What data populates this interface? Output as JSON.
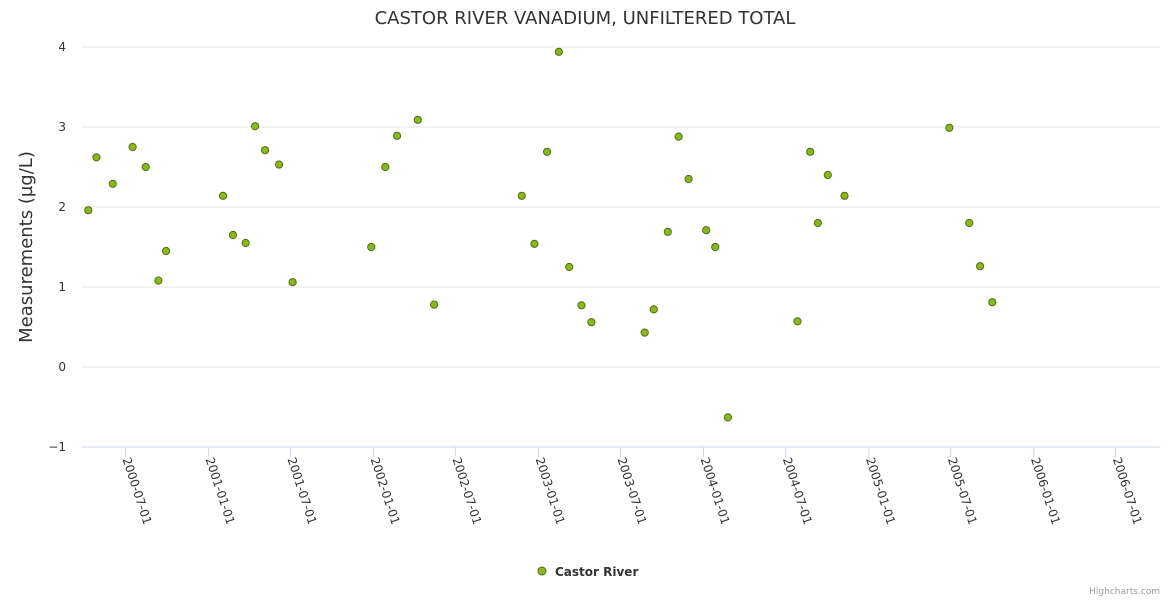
{
  "chart_data": {
    "type": "scatter",
    "title": "CASTOR RIVER VANADIUM, UNFILTERED TOTAL",
    "ylabel": "Measurements (µg/L)",
    "xlabel": "",
    "ylim": [
      -1,
      4
    ],
    "yticks": [
      "−1",
      "0",
      "1",
      "2",
      "3",
      "4"
    ],
    "ytick_values": [
      -1,
      0,
      1,
      2,
      3,
      4
    ],
    "xlim": [
      "2000-03-27",
      "2006-10-07"
    ],
    "xticks": [
      "2000-07-01",
      "2001-01-01",
      "2001-07-01",
      "2002-01-01",
      "2002-07-01",
      "2003-01-01",
      "2003-07-01",
      "2004-01-01",
      "2004-07-01",
      "2005-01-01",
      "2005-07-01",
      "2006-01-01",
      "2006-07-01"
    ],
    "series": [
      {
        "name": "Castor River",
        "color": "#8ab81e",
        "points": [
          {
            "x": "2000-04-10",
            "y": 1.96
          },
          {
            "x": "2000-04-28",
            "y": 2.62
          },
          {
            "x": "2000-06-03",
            "y": 2.29
          },
          {
            "x": "2000-07-17",
            "y": 2.75
          },
          {
            "x": "2000-08-15",
            "y": 2.5
          },
          {
            "x": "2000-09-12",
            "y": 1.08
          },
          {
            "x": "2000-09-29",
            "y": 1.45
          },
          {
            "x": "2001-02-02",
            "y": 2.14
          },
          {
            "x": "2001-02-24",
            "y": 1.65
          },
          {
            "x": "2001-03-24",
            "y": 1.55
          },
          {
            "x": "2001-04-14",
            "y": 3.01
          },
          {
            "x": "2001-05-06",
            "y": 2.71
          },
          {
            "x": "2001-06-06",
            "y": 2.53
          },
          {
            "x": "2001-07-06",
            "y": 1.06
          },
          {
            "x": "2001-12-27",
            "y": 1.5
          },
          {
            "x": "2002-01-27",
            "y": 2.5
          },
          {
            "x": "2002-02-22",
            "y": 2.89
          },
          {
            "x": "2002-04-09",
            "y": 3.09
          },
          {
            "x": "2002-05-15",
            "y": 0.78
          },
          {
            "x": "2002-11-25",
            "y": 2.14
          },
          {
            "x": "2002-12-23",
            "y": 1.54
          },
          {
            "x": "2003-01-20",
            "y": 2.69
          },
          {
            "x": "2003-02-15",
            "y": 3.94
          },
          {
            "x": "2003-03-10",
            "y": 1.25
          },
          {
            "x": "2003-04-06",
            "y": 0.77
          },
          {
            "x": "2003-04-28",
            "y": 0.56
          },
          {
            "x": "2003-08-24",
            "y": 0.43
          },
          {
            "x": "2003-09-13",
            "y": 0.72
          },
          {
            "x": "2003-10-14",
            "y": 1.69
          },
          {
            "x": "2003-11-07",
            "y": 2.88
          },
          {
            "x": "2003-11-29",
            "y": 2.35
          },
          {
            "x": "2004-01-07",
            "y": 1.71
          },
          {
            "x": "2004-01-27",
            "y": 1.5
          },
          {
            "x": "2004-02-24",
            "y": -0.63
          },
          {
            "x": "2004-07-27",
            "y": 0.57
          },
          {
            "x": "2004-08-24",
            "y": 2.69
          },
          {
            "x": "2004-09-10",
            "y": 1.8
          },
          {
            "x": "2004-10-02",
            "y": 2.4
          },
          {
            "x": "2004-11-08",
            "y": 2.14
          },
          {
            "x": "2005-06-28",
            "y": 2.99
          },
          {
            "x": "2005-08-11",
            "y": 1.8
          },
          {
            "x": "2005-09-04",
            "y": 1.26
          },
          {
            "x": "2005-10-01",
            "y": 0.81
          }
        ]
      }
    ],
    "legend": {
      "position": "bottom-center",
      "entries": [
        "Castor River"
      ]
    },
    "grid": true,
    "credit": "Highcharts.com"
  }
}
